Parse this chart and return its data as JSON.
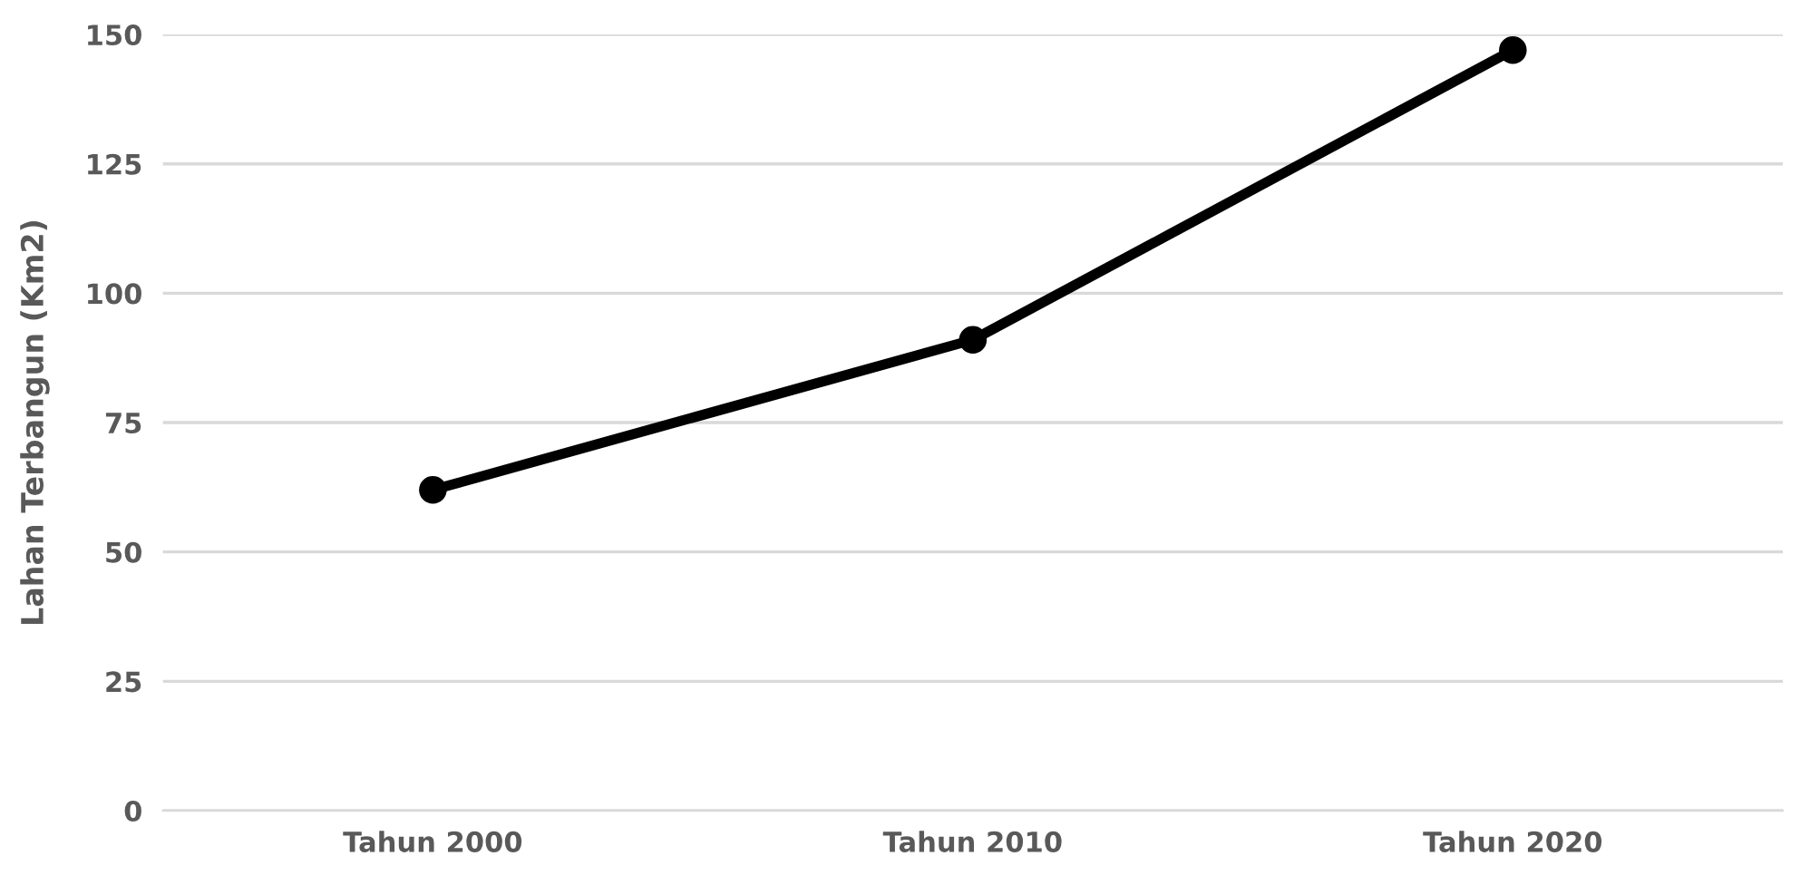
{
  "chart_data": {
    "type": "line",
    "ylabel": "Lahan Terbangun (Km2)",
    "categories": [
      "Tahun 2000",
      "Tahun 2010",
      "Tahun 2020"
    ],
    "series": [
      {
        "color": "#000000",
        "values": [
          62,
          91,
          147
        ]
      }
    ],
    "ylim": [
      0,
      150
    ],
    "yticks": [
      0,
      25,
      50,
      75,
      100,
      125,
      150
    ],
    "grid": "y",
    "marker": "circle",
    "line_style": "solid"
  }
}
